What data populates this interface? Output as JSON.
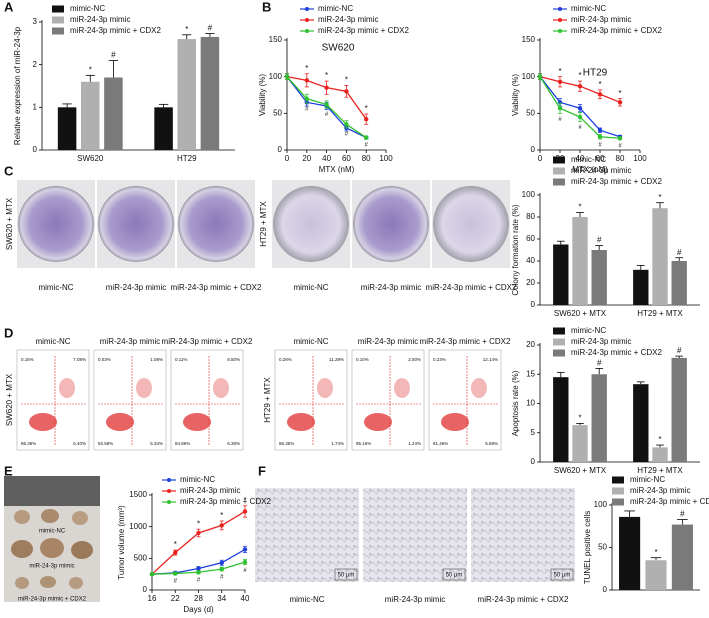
{
  "chart_data": [
    {
      "type": "bar",
      "ylabel": "Relative expression of miR-24-3p",
      "categories": [
        "SW620",
        "HT29"
      ],
      "ylim": [
        0,
        3
      ],
      "yticks": [
        0,
        1,
        2,
        3
      ],
      "series": [
        {
          "name": "mimic-NC",
          "color": "#111111",
          "values": [
            1.0,
            1.0
          ],
          "errors": [
            0.08,
            0.07
          ],
          "markers": [
            null,
            null
          ]
        },
        {
          "name": "miR-24-3p mimic",
          "color": "#b0b0b0",
          "values": [
            1.6,
            2.6
          ],
          "errors": [
            0.15,
            0.1
          ],
          "markers": [
            "*",
            "*"
          ]
        },
        {
          "name": "miR-24-3p mimic + CDX2",
          "color": "#7a7a7a",
          "values": [
            1.7,
            2.65
          ],
          "errors": [
            0.4,
            0.08
          ],
          "markers": [
            "#",
            "#"
          ]
        }
      ]
    },
    {
      "type": "line",
      "title": "SW620",
      "xlabel": "MTX (nM)",
      "ylabel": "Viability (%)",
      "x": [
        0,
        20,
        40,
        60,
        80
      ],
      "xlim": [
        0,
        100
      ],
      "xticks": [
        0,
        20,
        40,
        60,
        80,
        100
      ],
      "ylim": [
        0,
        150
      ],
      "yticks": [
        0,
        50,
        100,
        150
      ],
      "series": [
        {
          "name": "mimic-NC",
          "color": "#1f3fdc",
          "values": [
            100,
            65,
            60,
            30,
            17
          ],
          "errors": [
            4,
            5,
            5,
            4,
            2
          ],
          "markers": [
            null,
            null,
            null,
            null,
            null
          ]
        },
        {
          "name": "miR-24-3p mimic",
          "color": "#e8231f",
          "values": [
            100,
            95,
            85,
            80,
            42
          ],
          "errors": [
            4,
            9,
            9,
            8,
            7
          ],
          "markers": [
            null,
            "*",
            "*",
            "*",
            "*"
          ]
        },
        {
          "name": "miR-24-3p mimic + CDX2",
          "color": "#2fc12f",
          "values": [
            100,
            70,
            62,
            35,
            17
          ],
          "errors": [
            4,
            6,
            5,
            5,
            2
          ],
          "markers": [
            null,
            "#",
            "#",
            "#",
            "#"
          ]
        }
      ]
    },
    {
      "type": "line",
      "title": "HT29",
      "xlabel": "MTX (nM)",
      "ylabel": "Viability (%)",
      "x": [
        0,
        20,
        40,
        60,
        80
      ],
      "xlim": [
        0,
        100
      ],
      "xticks": [
        0,
        20,
        40,
        60,
        80,
        100
      ],
      "ylim": [
        0,
        150
      ],
      "yticks": [
        0,
        50,
        100,
        150
      ],
      "series": [
        {
          "name": "mimic-NC",
          "color": "#1f3fdc",
          "values": [
            100,
            65,
            57,
            27,
            18
          ],
          "errors": [
            4,
            5,
            5,
            3,
            2
          ],
          "markers": [
            null,
            null,
            null,
            null,
            null
          ]
        },
        {
          "name": "miR-24-3p mimic",
          "color": "#e8231f",
          "values": [
            100,
            93,
            87,
            76,
            65
          ],
          "errors": [
            4,
            7,
            7,
            6,
            5
          ],
          "markers": [
            null,
            "*",
            "*",
            "*",
            "*"
          ]
        },
        {
          "name": "miR-24-3p mimic + CDX2",
          "color": "#2fc12f",
          "values": [
            100,
            57,
            45,
            18,
            16
          ],
          "errors": [
            4,
            7,
            6,
            3,
            2
          ],
          "markers": [
            null,
            "#",
            "#",
            "#",
            "#"
          ]
        }
      ]
    },
    {
      "type": "bar",
      "ylabel": "Colony formation rate (%)",
      "categories": [
        "SW620 + MTX",
        "HT29 + MTX"
      ],
      "ylim": [
        0,
        100
      ],
      "yticks": [
        0,
        20,
        40,
        60,
        80,
        100
      ],
      "series": [
        {
          "name": "mimic-NC",
          "color": "#111111",
          "values": [
            55,
            32
          ],
          "errors": [
            3,
            4
          ],
          "markers": [
            null,
            null
          ]
        },
        {
          "name": "miR-24-3p mimic",
          "color": "#b0b0b0",
          "values": [
            80,
            88
          ],
          "errors": [
            4,
            5
          ],
          "markers": [
            "*",
            "*"
          ]
        },
        {
          "name": "miR-24-3p mimic + CDX2",
          "color": "#7a7a7a",
          "values": [
            50,
            40
          ],
          "errors": [
            4,
            3
          ],
          "markers": [
            "#",
            "#"
          ]
        }
      ]
    },
    {
      "type": "bar",
      "ylabel": "Apoptosis rate (%)",
      "categories": [
        "SW620 + MTX",
        "HT29 + MTX"
      ],
      "ylim": [
        0,
        20
      ],
      "yticks": [
        0,
        5,
        10,
        15,
        20
      ],
      "series": [
        {
          "name": "mimic-NC",
          "color": "#111111",
          "values": [
            14.5,
            13.3
          ],
          "errors": [
            0.8,
            0.4
          ],
          "markers": [
            null,
            null
          ]
        },
        {
          "name": "miR-24-3p mimic",
          "color": "#b0b0b0",
          "values": [
            6.3,
            2.5
          ],
          "errors": [
            0.3,
            0.4
          ],
          "markers": [
            "*",
            "*"
          ]
        },
        {
          "name": "miR-24-3p mimic + CDX2",
          "color": "#7a7a7a",
          "values": [
            15,
            17.8
          ],
          "errors": [
            1,
            0.3
          ],
          "markers": [
            "#",
            "#"
          ]
        }
      ]
    },
    {
      "type": "line",
      "xlabel": "Days (d)",
      "ylabel": "Tumor volume (mm³)",
      "x": [
        16,
        22,
        28,
        34,
        40
      ],
      "xlim": [
        16,
        40
      ],
      "xticks": [
        16,
        22,
        28,
        34,
        40
      ],
      "ylim": [
        0,
        1500
      ],
      "yticks": [
        0,
        500,
        1000,
        1500
      ],
      "series": [
        {
          "name": "mimic-NC",
          "color": "#1f3fdc",
          "values": [
            250,
            270,
            340,
            430,
            640
          ],
          "errors": [
            20,
            25,
            30,
            40,
            50
          ],
          "markers": [
            null,
            null,
            null,
            null,
            null
          ]
        },
        {
          "name": "miR-24-3p mimic",
          "color": "#e8231f",
          "values": [
            250,
            590,
            900,
            1020,
            1240
          ],
          "errors": [
            20,
            40,
            60,
            70,
            90
          ],
          "markers": [
            null,
            "*",
            "*",
            "*",
            "*"
          ]
        },
        {
          "name": "miR-24-3p mimic + CDX2",
          "color": "#2fc12f",
          "values": [
            250,
            260,
            280,
            330,
            440
          ],
          "errors": [
            20,
            20,
            25,
            30,
            40
          ],
          "markers": [
            null,
            "#",
            "#",
            "#",
            "#"
          ]
        }
      ]
    },
    {
      "type": "bar",
      "ylabel": "TUNEL positive cells",
      "categories": [
        null
      ],
      "ylim": [
        0,
        100
      ],
      "yticks": [
        0,
        50,
        100
      ],
      "series": [
        {
          "name": "mimic-NC",
          "color": "#111111",
          "values": [
            86
          ],
          "errors": [
            7
          ],
          "markers": [
            null
          ]
        },
        {
          "name": "miR-24-3p mimic",
          "color": "#b0b0b0",
          "values": [
            35
          ],
          "errors": [
            3
          ],
          "markers": [
            "*"
          ]
        },
        {
          "name": "miR-24-3p mimic + CDX2",
          "color": "#7a7a7a",
          "values": [
            77
          ],
          "errors": [
            6
          ],
          "markers": [
            "#"
          ]
        }
      ]
    }
  ],
  "figure": {
    "panel_letters": [
      "A",
      "B",
      "C",
      "D",
      "E",
      "F"
    ],
    "colony": {
      "cell_lines": [
        "SW620 + MTX",
        "HT29 + MTX"
      ],
      "captions": [
        "mimic-NC",
        "miR-24-3p mimic",
        "miR-24-3p mimic + CDX2",
        "mimic-NC",
        "miR-24-3p mimic",
        "miR-24-3p mimic + CDX2"
      ]
    },
    "flow": {
      "cell_lines": [
        "SW620 + MTX",
        "HT29 + MTX"
      ],
      "captions": [
        "mimic-NC",
        "miR-24-3p mimic",
        "miR-24-3p mimic + CDX2",
        "mimic-NC",
        "miR-24-3p mimic",
        "miR-24-3p mimic + CDX2"
      ],
      "quadrants": [
        [
          "0.16%",
          "7.08%",
          "86.36%",
          "6.40%"
        ],
        [
          "0.03%",
          "1.08%",
          "92.58%",
          "5.34%"
        ],
        [
          "0.11%",
          "8.50%",
          "84.86%",
          "6.38%"
        ],
        [
          "0.28%",
          "11.28%",
          "86.35%",
          "1.74%"
        ],
        [
          "0.10%",
          "2.50%",
          "95.16%",
          "1.24%"
        ],
        [
          "0.23%",
          "12.14%",
          "81.46%",
          "5.68%"
        ]
      ]
    },
    "tumor": {
      "captions": [
        "mimic-NC",
        "miR-24-3p mimic",
        "miR-24-3p mimic + CDX2"
      ]
    },
    "tunel": {
      "captions": [
        "mimic-NC",
        "miR-24-3p mimic",
        "miR-24-3p mimic + CDX2"
      ],
      "scale_bar": "50 μm"
    }
  }
}
